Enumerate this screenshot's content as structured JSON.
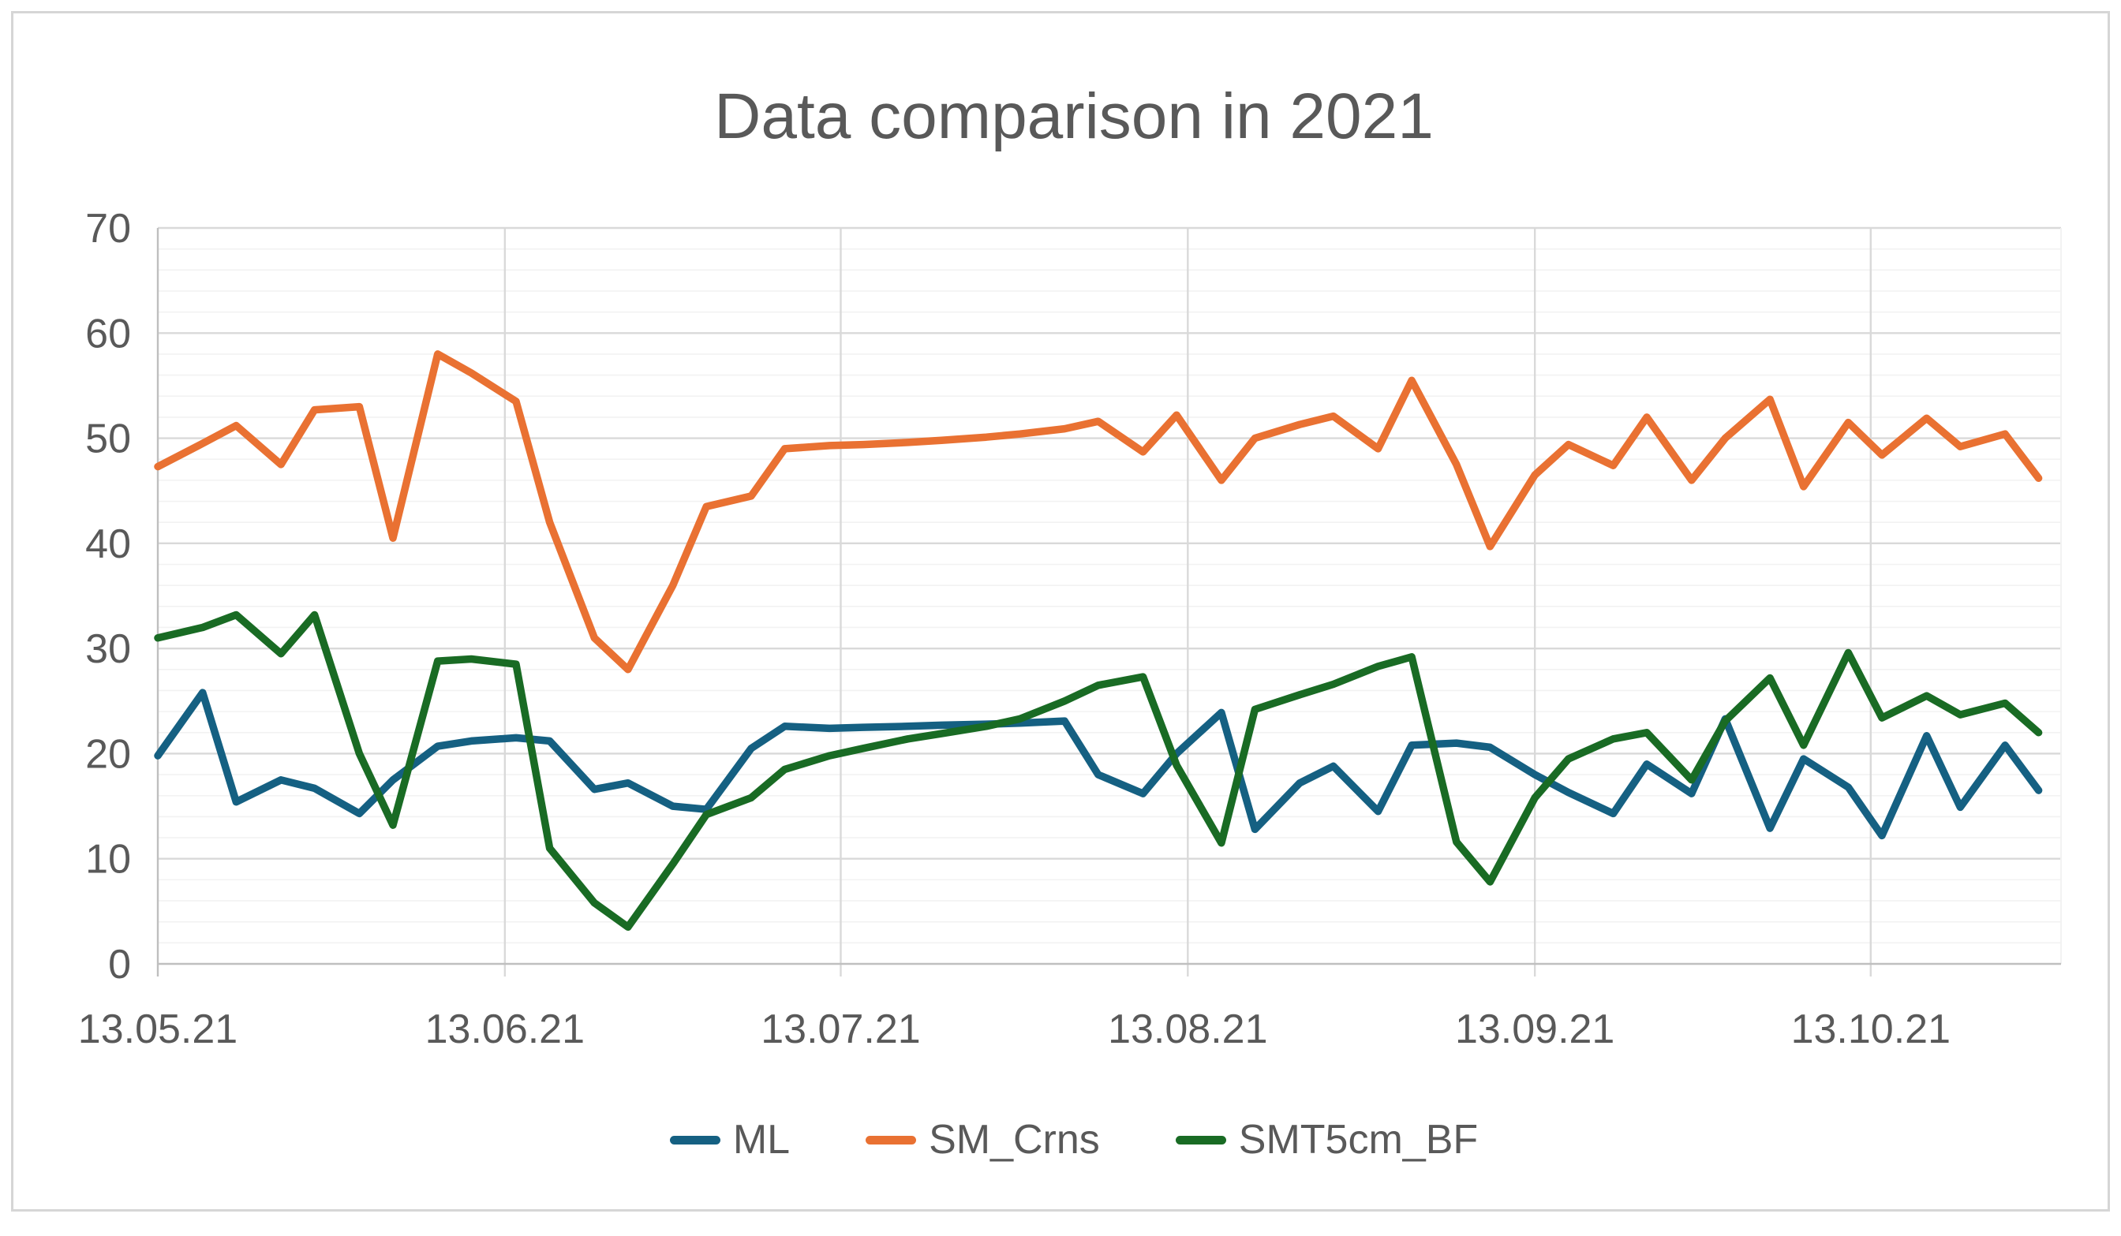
{
  "chart_data": {
    "type": "line",
    "title": "Data comparison in 2021",
    "xlabel": "",
    "ylabel": "",
    "grid": "major-and-minor horizontal, monthly vertical",
    "legend_position": "bottom-center",
    "text_color": "#595959",
    "grid_major_color": "#d9d9d9",
    "grid_minor_color": "#f2f2f2",
    "axis_line_color": "#bfbfbf",
    "y_axis": {
      "min": 0,
      "max": 70,
      "step": 10,
      "minor_step": 2,
      "tick_labels": [
        "0",
        "10",
        "20",
        "30",
        "40",
        "50",
        "60",
        "70"
      ]
    },
    "x_axis": {
      "tick_labels": [
        "13.05.21",
        "13.06.21",
        "13.07.21",
        "13.08.21",
        "13.09.21",
        "13.10.21"
      ],
      "tick_days": [
        0,
        31,
        61,
        92,
        123,
        153
      ],
      "total_days": 170
    },
    "x_days": [
      0,
      4,
      7,
      11,
      14,
      18,
      21,
      25,
      28,
      32,
      35,
      39,
      42,
      46,
      49,
      53,
      56,
      60,
      63,
      67,
      70,
      74,
      77,
      81,
      84,
      88,
      91,
      95,
      98,
      102,
      105,
      109,
      112,
      116,
      119,
      123,
      126,
      130,
      133,
      137,
      140,
      144,
      147,
      151,
      154,
      158,
      161,
      165,
      168
    ],
    "series": [
      {
        "name": "ML",
        "color": "#156082",
        "values": [
          19.8,
          25.8,
          15.4,
          17.5,
          16.7,
          14.3,
          17.5,
          20.7,
          21.2,
          21.5,
          21.2,
          16.6,
          17.2,
          15.0,
          14.7,
          20.5,
          22.6,
          22.4,
          22.5,
          22.6,
          22.7,
          22.8,
          22.9,
          23.1,
          18.0,
          16.2,
          20.0,
          23.9,
          12.8,
          17.2,
          18.8,
          14.5,
          20.8,
          21.0,
          20.6,
          18.0,
          16.3,
          14.3,
          19.0,
          16.2,
          23.3,
          12.9,
          19.5,
          16.8,
          12.2,
          21.7,
          14.9,
          20.8,
          16.5
        ]
      },
      {
        "name": "SM_Crns",
        "color": "#e97132",
        "values": [
          47.3,
          49.5,
          51.2,
          47.5,
          52.7,
          53.0,
          40.5,
          58.0,
          56.2,
          53.5,
          42.0,
          31.0,
          28.0,
          36.0,
          43.5,
          44.5,
          49.0,
          49.3,
          49.4,
          49.6,
          49.8,
          50.1,
          50.4,
          50.9,
          51.6,
          48.7,
          52.2,
          46.0,
          50.0,
          51.3,
          52.1,
          49.0,
          55.5,
          47.5,
          39.7,
          46.5,
          49.4,
          47.4,
          52.0,
          46.0,
          50.0,
          53.7,
          45.4,
          51.5,
          48.4,
          51.9,
          49.2,
          50.4,
          46.2
        ]
      },
      {
        "name": "SMT5cm_BF",
        "color": "#196b24",
        "values": [
          31.0,
          32.0,
          33.2,
          29.5,
          33.2,
          20.0,
          13.2,
          28.8,
          29.0,
          28.5,
          11.0,
          5.8,
          3.5,
          9.5,
          14.2,
          15.8,
          18.5,
          19.8,
          20.5,
          21.4,
          21.9,
          22.6,
          23.3,
          25.0,
          26.5,
          27.3,
          18.9,
          11.5,
          24.2,
          25.6,
          26.6,
          28.3,
          29.2,
          11.6,
          7.8,
          15.8,
          19.5,
          21.4,
          22.0,
          17.5,
          23.1,
          27.2,
          20.8,
          29.6,
          23.4,
          25.5,
          23.7,
          24.8,
          22.0
        ]
      }
    ]
  }
}
